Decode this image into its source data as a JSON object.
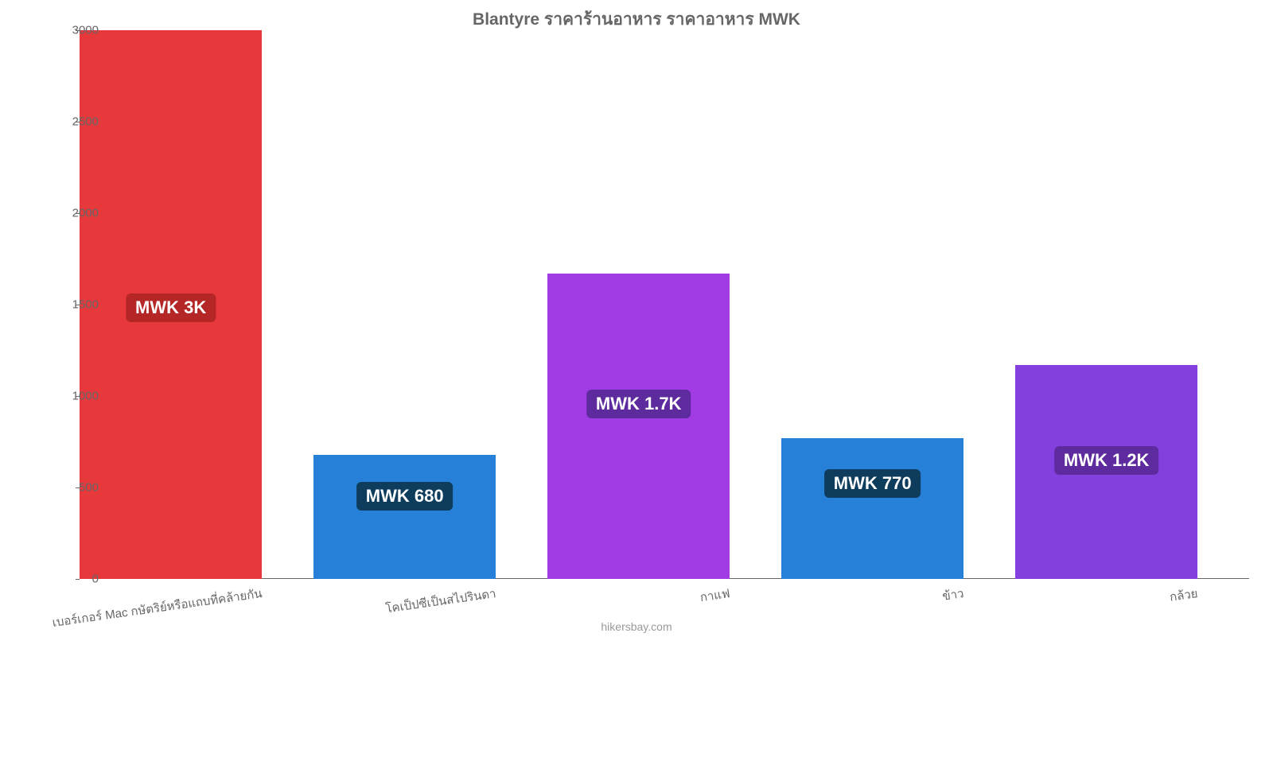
{
  "chart": {
    "type": "bar",
    "title": "Blantyre ราคาร้านอาหาร ราคาอาหาร MWK",
    "title_color": "#666666",
    "title_fontsize": 21,
    "background_color": "#ffffff",
    "axis_color": "#666666",
    "tick_label_color": "#666666",
    "tick_fontsize": 15,
    "value_labels": [
      "MWK 3K",
      "MWK 680",
      "MWK 1.7K",
      "MWK 770",
      "MWK 1.2K"
    ],
    "value_label_fontsize": 22,
    "value_label_colors": [
      "#b52626",
      "#0d3c5c",
      "#5e2b9e",
      "#0d3c5c",
      "#5e2b9e"
    ],
    "value_label_text_color": "#ffffff",
    "categories": [
      "เบอร์เกอร์ Mac กษัตริย์หรือแถบที่คล้ายกัน",
      "โคเป็ปซีเป็นสไปรินดา",
      "กาแฟ",
      "ข้าว",
      "กล้วย"
    ],
    "values": [
      3000,
      680,
      1670,
      770,
      1170
    ],
    "bar_colors": [
      "#e7383b",
      "#2780d7",
      "#a13be4",
      "#2780d7",
      "#8440df"
    ],
    "ylim": [
      0,
      3000
    ],
    "ytick_step": 500,
    "yticks": [
      0,
      500,
      1000,
      1500,
      2000,
      2500,
      3000
    ],
    "bar_width_ratio": 0.78,
    "attribution": "hikersbay.com",
    "attribution_color": "#999999",
    "x_label_rotation_deg": -8
  }
}
